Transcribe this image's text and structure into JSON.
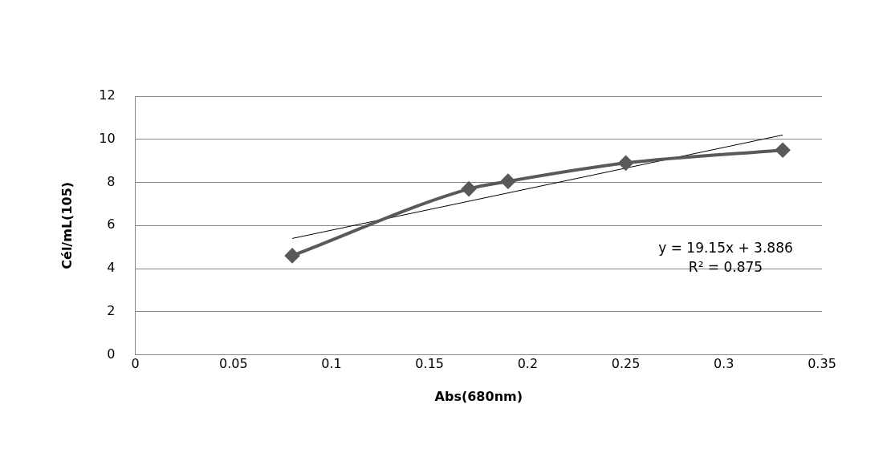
{
  "chart_data": {
    "type": "line",
    "xlabel": "Abs(680nm)",
    "ylabel": "Cél/mL(105)",
    "xlim": [
      0,
      0.35
    ],
    "xticks": [
      0,
      0.05,
      0.1,
      0.15,
      0.2,
      0.25,
      0.3,
      0.35
    ],
    "ylim": [
      0,
      12
    ],
    "yticks": [
      0,
      2,
      4,
      6,
      8,
      10,
      12
    ],
    "grid": "y",
    "legend": false,
    "series": [
      {
        "color": "#595959",
        "marker": "diamond",
        "x": [
          0.08,
          0.17,
          0.19,
          0.25,
          0.33
        ],
        "values": [
          4.6,
          7.7,
          8.05,
          8.9,
          9.5
        ]
      },
      {
        "type": "line",
        "color": "#000000",
        "marker": "none",
        "x": [
          0.08,
          0.33
        ],
        "values": [
          5.4,
          10.2
        ]
      }
    ],
    "annotations": [
      "y = 19.15x + 3.886",
      "R² = 0.875"
    ]
  }
}
